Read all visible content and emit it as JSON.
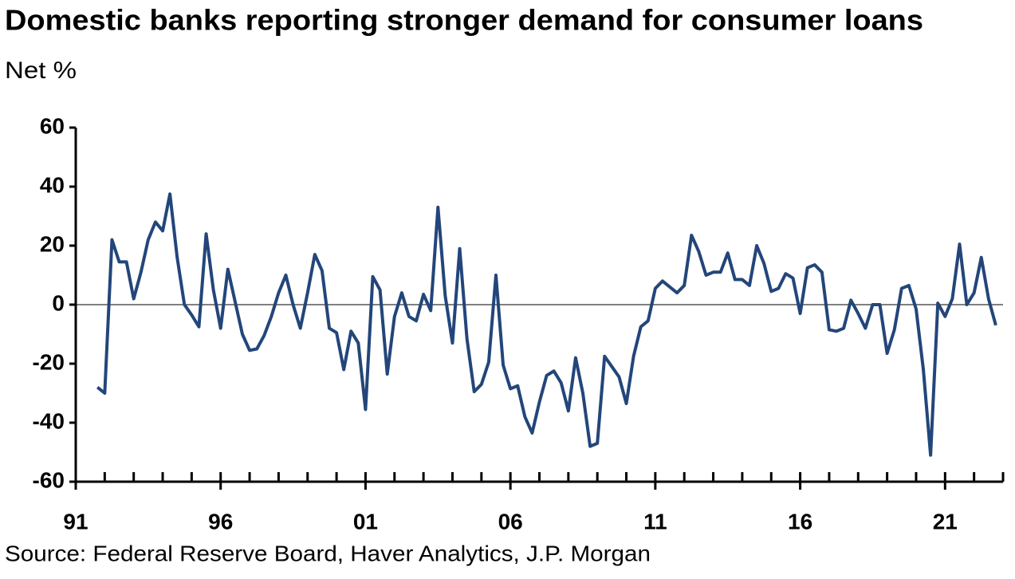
{
  "chart_data": {
    "type": "line",
    "title": "Domestic banks reporting stronger demand for consumer loans",
    "subtitle": "Net %",
    "source": "Source: Federal Reserve Board, Haver Analytics, J.P. Morgan",
    "x": [
      1991.75,
      1992,
      1992.25,
      1992.5,
      1992.75,
      1993,
      1993.25,
      1993.5,
      1993.75,
      1994,
      1994.25,
      1994.5,
      1994.75,
      1995,
      1995.25,
      1995.5,
      1995.75,
      1996,
      1996.25,
      1996.5,
      1996.75,
      1997,
      1997.25,
      1997.5,
      1997.75,
      1998,
      1998.25,
      1998.5,
      1998.75,
      1999,
      1999.25,
      1999.5,
      1999.75,
      2000,
      2000.25,
      2000.5,
      2000.75,
      2001,
      2001.25,
      2001.5,
      2001.75,
      2002,
      2002.25,
      2002.5,
      2002.75,
      2003,
      2003.25,
      2003.5,
      2003.75,
      2004,
      2004.25,
      2004.5,
      2004.75,
      2005,
      2005.25,
      2005.5,
      2005.75,
      2006,
      2006.25,
      2006.5,
      2006.75,
      2007,
      2007.25,
      2007.5,
      2007.75,
      2008,
      2008.25,
      2008.5,
      2008.75,
      2009,
      2009.25,
      2009.5,
      2009.75,
      2010,
      2010.25,
      2010.5,
      2010.75,
      2011,
      2011.25,
      2011.5,
      2011.75,
      2012,
      2012.25,
      2012.5,
      2012.75,
      2013,
      2013.25,
      2013.5,
      2013.75,
      2014,
      2014.25,
      2014.5,
      2014.75,
      2015,
      2015.25,
      2015.5,
      2015.75,
      2016,
      2016.25,
      2016.5,
      2016.75,
      2017,
      2017.25,
      2017.5,
      2017.75,
      2018,
      2018.25,
      2018.5,
      2018.75,
      2019,
      2019.25,
      2019.5,
      2019.75,
      2020,
      2020.25,
      2020.5,
      2020.75,
      2021,
      2021.25,
      2021.5,
      2021.75,
      2022,
      2022.25,
      2022.5,
      2022.75
    ],
    "series": [
      {
        "name": "Net %",
        "color": "#23467a",
        "values": [
          -28,
          -30,
          22,
          14.5,
          14.5,
          2,
          11,
          22,
          28,
          25,
          37.5,
          16,
          0,
          -3.5,
          -7.5,
          24,
          5,
          -8,
          12,
          1,
          -10,
          -15.5,
          -15,
          -10.5,
          -4,
          4,
          10,
          0,
          -8,
          4,
          17,
          11.5,
          -8,
          -9.5,
          -22,
          -9,
          -13,
          -35.5,
          9.5,
          5,
          -23.5,
          -4,
          4,
          -4,
          -5.5,
          3.5,
          -2,
          33,
          3,
          -13,
          19,
          -11.5,
          -29.5,
          -27,
          -19.5,
          10,
          -20.5,
          -28.5,
          -27.5,
          -38,
          -43.5,
          -33,
          -24,
          -22.5,
          -26.5,
          -36,
          -18,
          -30,
          -48,
          -47,
          -17.5,
          -21,
          -24.5,
          -33.5,
          -17.5,
          -7.5,
          -5.5,
          5.5,
          8,
          6,
          4,
          6.5,
          23.5,
          18,
          10,
          11,
          11,
          17.5,
          8.5,
          8.5,
          6.5,
          20,
          14,
          4.5,
          5.5,
          10.5,
          9,
          -3,
          12.5,
          13.5,
          11,
          -8.5,
          -9,
          -8,
          1.5,
          -3,
          -8,
          0,
          0,
          -16.5,
          -8.5,
          5.5,
          6.5,
          -1.5,
          -22,
          -51,
          0.5,
          -4,
          2,
          20.5,
          0,
          4,
          16,
          2,
          -7
        ]
      }
    ],
    "xlim": [
      1991,
      2023
    ],
    "xticks": [
      {
        "value": 1991,
        "label": "91"
      },
      {
        "value": 1996,
        "label": "96"
      },
      {
        "value": 2001,
        "label": "01"
      },
      {
        "value": 2006,
        "label": "06"
      },
      {
        "value": 2011,
        "label": "11"
      },
      {
        "value": 2016,
        "label": "16"
      },
      {
        "value": 2021,
        "label": "21"
      }
    ],
    "xminorticks": [
      1992,
      1993,
      1994,
      1995,
      1997,
      1998,
      1999,
      2000,
      2002,
      2003,
      2004,
      2005,
      2007,
      2008,
      2009,
      2010,
      2012,
      2013,
      2014,
      2015,
      2017,
      2018,
      2019,
      2020,
      2022,
      2023
    ],
    "ylim": [
      -60,
      60
    ],
    "yticks": [
      -60,
      -40,
      -20,
      0,
      20,
      40,
      60
    ],
    "zero_line": true
  }
}
